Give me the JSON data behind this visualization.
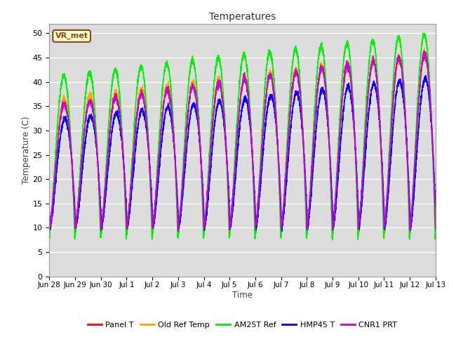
{
  "title": "Temperatures",
  "xlabel": "Time",
  "ylabel": "Temperature (C)",
  "ylim": [
    0,
    52
  ],
  "bg_color": "#dcdcdc",
  "fig_color": "#ffffff",
  "annotation_text": "VR_met",
  "annotation_bg": "#ffffcc",
  "annotation_border": "#8B4513",
  "grid_color": "#ffffff",
  "series": [
    {
      "label": "Panel T",
      "color": "#ff0000",
      "lw": 1.0
    },
    {
      "label": "Old Ref Temp",
      "color": "#ffa500",
      "lw": 1.0
    },
    {
      "label": "AM25T Ref",
      "color": "#00ee00",
      "lw": 1.2
    },
    {
      "label": "HMP45 T",
      "color": "#0000ff",
      "lw": 1.2
    },
    {
      "label": "CNR1 PRT",
      "color": "#cc00cc",
      "lw": 1.2
    }
  ],
  "num_days": 15,
  "points_per_day": 288,
  "tick_labels": [
    "Jun 28",
    "Jun 29",
    "Jun 30",
    "Jul 1",
    "Jul 2",
    "Jul 3",
    "Jul 4",
    "Jul 5",
    "Jul 6",
    "Jul 7",
    "Jul 8",
    "Jul 9",
    "Jul 10",
    "Jul 11",
    "Jul 12",
    "Jul 13"
  ]
}
